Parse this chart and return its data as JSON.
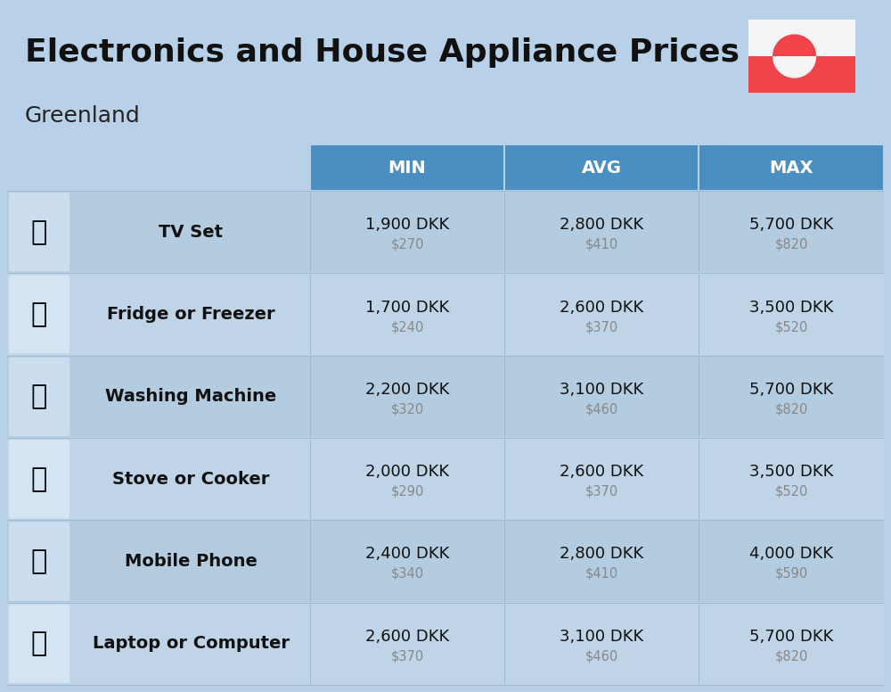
{
  "title_line1": "Electronics and House Appliance Prices",
  "subtitle": "Greenland",
  "bg_color": "#b8d0e8",
  "header_bg_color": "#4a8fc2",
  "header_text_color": "#ffffff",
  "row_bg_even": "#b8cfe6",
  "row_bg_odd": "#c8daf0",
  "col_headers": [
    "MIN",
    "AVG",
    "MAX"
  ],
  "items": [
    {
      "name": "TV Set",
      "min_dkk": "1,900 DKK",
      "min_usd": "$270",
      "avg_dkk": "2,800 DKK",
      "avg_usd": "$410",
      "max_dkk": "5,700 DKK",
      "max_usd": "$820"
    },
    {
      "name": "Fridge or Freezer",
      "min_dkk": "1,700 DKK",
      "min_usd": "$240",
      "avg_dkk": "2,600 DKK",
      "avg_usd": "$370",
      "max_dkk": "3,500 DKK",
      "max_usd": "$520"
    },
    {
      "name": "Washing Machine",
      "min_dkk": "2,200 DKK",
      "min_usd": "$320",
      "avg_dkk": "3,100 DKK",
      "avg_usd": "$460",
      "max_dkk": "5,700 DKK",
      "max_usd": "$820"
    },
    {
      "name": "Stove or Cooker",
      "min_dkk": "2,000 DKK",
      "min_usd": "$290",
      "avg_dkk": "2,600 DKK",
      "avg_usd": "$370",
      "max_dkk": "3,500 DKK",
      "max_usd": "$520"
    },
    {
      "name": "Mobile Phone",
      "min_dkk": "2,400 DKK",
      "min_usd": "$340",
      "avg_dkk": "2,800 DKK",
      "avg_usd": "$410",
      "max_dkk": "4,000 DKK",
      "max_usd": "$590"
    },
    {
      "name": "Laptop or Computer",
      "min_dkk": "2,600 DKK",
      "min_usd": "$370",
      "avg_dkk": "3,100 DKK",
      "avg_usd": "$460",
      "max_dkk": "5,700 DKK",
      "max_usd": "$820"
    }
  ],
  "flag_red": "#f0434a",
  "flag_white": "#f5f5f5",
  "dkk_fontsize": 13,
  "usd_fontsize": 10.5,
  "name_fontsize": 14,
  "header_fontsize": 14
}
